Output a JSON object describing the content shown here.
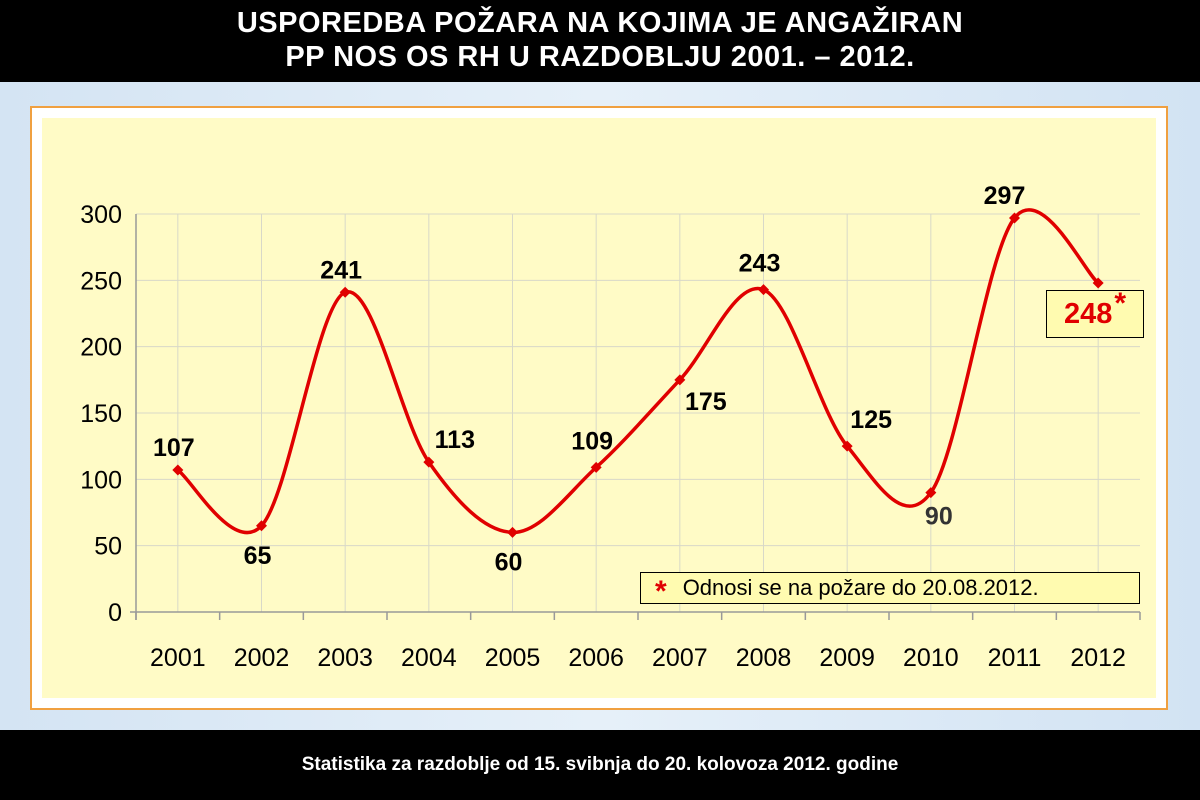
{
  "header": {
    "title_line1": "USPOREDBA POŽARA NA KOJIMA JE ANGAŽIRAN",
    "title_line2": "PP NOS OS RH  U  RAZDOBLJU  2001. – 2012."
  },
  "footer": {
    "text": "Statistika za razdoblje od 15. svibnja do 20. kolovoza 2012. godine"
  },
  "note": {
    "asterisk": "*",
    "text": "Odnosi se na požare do 20.08.2012."
  },
  "highlight": {
    "value": "248",
    "asterisk": "*"
  },
  "colors": {
    "line": "#e00000",
    "plot_background": "#fffbc6",
    "frame_border": "#f0a040",
    "grid": "#d8d8c8"
  },
  "chart_data": {
    "type": "line",
    "title": "USPOREDBA POŽARA NA KOJIMA JE ANGAŽIRAN PP NOS OS RH U RAZDOBLJU 2001. – 2012.",
    "xlabel": "",
    "ylabel": "",
    "categories": [
      "2001",
      "2002",
      "2003",
      "2004",
      "2005",
      "2006",
      "2007",
      "2008",
      "2009",
      "2010",
      "2011",
      "2012"
    ],
    "series": [
      {
        "values": [
          107,
          65,
          241,
          113,
          60,
          109,
          175,
          243,
          125,
          90,
          297,
          248
        ]
      }
    ],
    "ylim": [
      0,
      300
    ],
    "yticks": [
      0,
      50,
      100,
      150,
      200,
      250,
      300
    ],
    "grid": true,
    "legend": "none"
  }
}
